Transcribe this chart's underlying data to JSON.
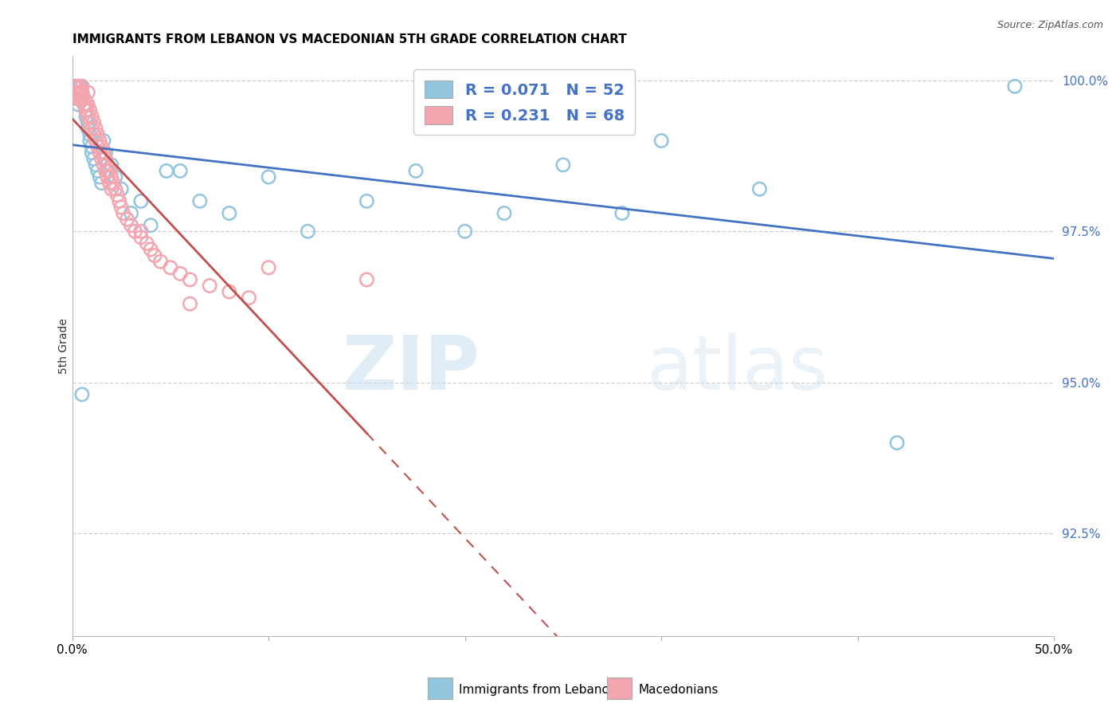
{
  "title": "IMMIGRANTS FROM LEBANON VS MACEDONIAN 5TH GRADE CORRELATION CHART",
  "source": "Source: ZipAtlas.com",
  "ylabel": "5th Grade",
  "xlim": [
    0.0,
    0.5
  ],
  "ylim": [
    0.908,
    1.004
  ],
  "blue_color": "#92c5de",
  "pink_color": "#f4a6b0",
  "blue_line_color": "#4472c4",
  "pink_line_color": "#c0504d",
  "ytick_values": [
    0.925,
    0.95,
    0.975,
    1.0
  ],
  "ytick_labels": [
    "92.5%",
    "95.0%",
    "97.5%",
    "100.0%"
  ],
  "watermark_zip": "ZIP",
  "watermark_atlas": "atlas",
  "blue_r": "0.071",
  "blue_n": "52",
  "pink_r": "0.231",
  "pink_n": "68",
  "blue_x": [
    0.001,
    0.001,
    0.002,
    0.002,
    0.003,
    0.003,
    0.004,
    0.004,
    0.004,
    0.005,
    0.005,
    0.006,
    0.006,
    0.007,
    0.007,
    0.008,
    0.008,
    0.009,
    0.009,
    0.01,
    0.01,
    0.011,
    0.012,
    0.013,
    0.014,
    0.015,
    0.016,
    0.017,
    0.018,
    0.02,
    0.022,
    0.025,
    0.03,
    0.035,
    0.04,
    0.048,
    0.055,
    0.065,
    0.08,
    0.1,
    0.12,
    0.15,
    0.175,
    0.2,
    0.22,
    0.25,
    0.28,
    0.3,
    0.35,
    0.005,
    0.48,
    0.42
  ],
  "blue_y": [
    0.999,
    0.998,
    0.997,
    0.999,
    0.998,
    0.996,
    0.998,
    0.997,
    0.999,
    0.999,
    0.998,
    0.997,
    0.996,
    0.995,
    0.994,
    0.993,
    0.992,
    0.991,
    0.99,
    0.989,
    0.988,
    0.987,
    0.986,
    0.985,
    0.984,
    0.983,
    0.99,
    0.988,
    0.985,
    0.986,
    0.984,
    0.982,
    0.978,
    0.98,
    0.976,
    0.985,
    0.985,
    0.98,
    0.978,
    0.984,
    0.975,
    0.98,
    0.985,
    0.975,
    0.978,
    0.986,
    0.978,
    0.99,
    0.982,
    0.948,
    0.999,
    0.94
  ],
  "pink_x": [
    0.001,
    0.001,
    0.002,
    0.002,
    0.003,
    0.003,
    0.004,
    0.004,
    0.005,
    0.005,
    0.006,
    0.006,
    0.007,
    0.007,
    0.008,
    0.008,
    0.009,
    0.009,
    0.01,
    0.01,
    0.011,
    0.011,
    0.012,
    0.012,
    0.013,
    0.013,
    0.014,
    0.014,
    0.015,
    0.015,
    0.016,
    0.016,
    0.017,
    0.017,
    0.018,
    0.018,
    0.019,
    0.019,
    0.02,
    0.02,
    0.021,
    0.022,
    0.023,
    0.024,
    0.025,
    0.026,
    0.028,
    0.03,
    0.032,
    0.035,
    0.038,
    0.04,
    0.042,
    0.045,
    0.05,
    0.055,
    0.06,
    0.07,
    0.08,
    0.09,
    0.003,
    0.005,
    0.008,
    0.018,
    0.035,
    0.06,
    0.1,
    0.15
  ],
  "pink_y": [
    0.999,
    0.998,
    0.999,
    0.998,
    0.997,
    0.998,
    0.997,
    0.998,
    0.998,
    0.997,
    0.997,
    0.996,
    0.996,
    0.995,
    0.996,
    0.994,
    0.995,
    0.993,
    0.994,
    0.992,
    0.993,
    0.991,
    0.992,
    0.99,
    0.991,
    0.989,
    0.99,
    0.988,
    0.989,
    0.987,
    0.988,
    0.986,
    0.987,
    0.985,
    0.986,
    0.984,
    0.985,
    0.983,
    0.984,
    0.982,
    0.983,
    0.982,
    0.981,
    0.98,
    0.979,
    0.978,
    0.977,
    0.976,
    0.975,
    0.974,
    0.973,
    0.972,
    0.971,
    0.97,
    0.969,
    0.968,
    0.967,
    0.966,
    0.965,
    0.964,
    0.999,
    0.999,
    0.998,
    0.984,
    0.975,
    0.963,
    0.969,
    0.967
  ]
}
